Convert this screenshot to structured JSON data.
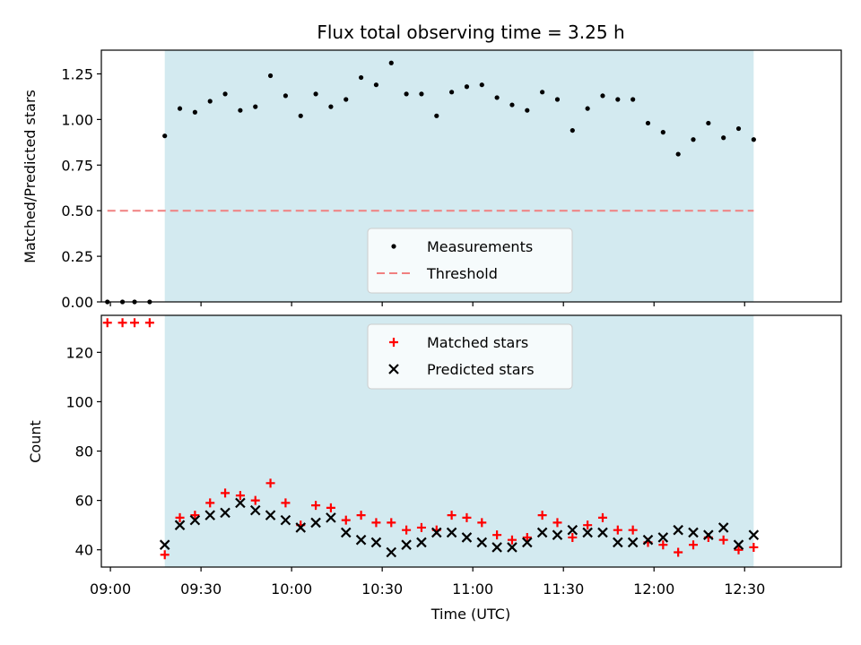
{
  "chart_data": [
    {
      "type": "scatter",
      "title": "Flux total observing time = 3.25 h",
      "xlabel": "",
      "ylabel": "Matched/Predicted stars",
      "xlim": [
        "08:57",
        "13:02"
      ],
      "ylim": [
        0,
        1.38
      ],
      "yticks": [
        "0.00",
        "0.25",
        "0.50",
        "0.75",
        "1.00",
        "1.25"
      ],
      "shaded_region": {
        "from": "09:18",
        "to": "12:33",
        "color": "#d3eaf0"
      },
      "legend_position": "lower-center",
      "series": [
        {
          "name": "Measurements",
          "marker": "dot",
          "color": "#000000",
          "points": [
            [
              "08:59",
              0.0
            ],
            [
              "09:04",
              0.0
            ],
            [
              "09:08",
              0.0
            ],
            [
              "09:13",
              0.0
            ],
            [
              "09:18",
              0.91
            ],
            [
              "09:23",
              1.06
            ],
            [
              "09:28",
              1.04
            ],
            [
              "09:33",
              1.1
            ],
            [
              "09:38",
              1.14
            ],
            [
              "09:43",
              1.05
            ],
            [
              "09:48",
              1.07
            ],
            [
              "09:53",
              1.24
            ],
            [
              "09:58",
              1.13
            ],
            [
              "10:03",
              1.02
            ],
            [
              "10:08",
              1.14
            ],
            [
              "10:13",
              1.07
            ],
            [
              "10:18",
              1.11
            ],
            [
              "10:23",
              1.23
            ],
            [
              "10:28",
              1.19
            ],
            [
              "10:33",
              1.31
            ],
            [
              "10:38",
              1.14
            ],
            [
              "10:43",
              1.14
            ],
            [
              "10:48",
              1.02
            ],
            [
              "10:53",
              1.15
            ],
            [
              "10:58",
              1.18
            ],
            [
              "11:03",
              1.19
            ],
            [
              "11:08",
              1.12
            ],
            [
              "11:13",
              1.08
            ],
            [
              "11:18",
              1.05
            ],
            [
              "11:23",
              1.15
            ],
            [
              "11:28",
              1.11
            ],
            [
              "11:33",
              0.94
            ],
            [
              "11:38",
              1.06
            ],
            [
              "11:43",
              1.13
            ],
            [
              "11:48",
              1.11
            ],
            [
              "11:53",
              1.11
            ],
            [
              "11:58",
              0.98
            ],
            [
              "12:03",
              0.93
            ],
            [
              "12:08",
              0.81
            ],
            [
              "12:13",
              0.89
            ],
            [
              "12:18",
              0.98
            ],
            [
              "12:23",
              0.9
            ],
            [
              "12:28",
              0.95
            ],
            [
              "12:33",
              0.89
            ]
          ]
        },
        {
          "name": "Threshold",
          "marker": "dashed-line",
          "color": "#f08080",
          "points": [
            [
              "08:59",
              0.5
            ],
            [
              "12:33",
              0.5
            ]
          ]
        }
      ]
    },
    {
      "type": "scatter",
      "title": "",
      "xlabel": "Time (UTC)",
      "ylabel": "Count",
      "xlim": [
        "08:57",
        "13:02"
      ],
      "ylim": [
        33,
        135
      ],
      "yticks": [
        "40",
        "60",
        "80",
        "100",
        "120"
      ],
      "xticks": [
        "09:00",
        "09:30",
        "10:00",
        "10:30",
        "11:00",
        "11:30",
        "12:00",
        "12:30"
      ],
      "shaded_region": {
        "from": "09:18",
        "to": "12:33",
        "color": "#d3eaf0"
      },
      "legend_position": "upper-center",
      "series": [
        {
          "name": "Matched stars",
          "marker": "plus",
          "color": "#ff0000",
          "points": [
            [
              "08:59",
              132
            ],
            [
              "09:04",
              132
            ],
            [
              "09:08",
              132
            ],
            [
              "09:13",
              132
            ],
            [
              "09:18",
              38
            ],
            [
              "09:23",
              53
            ],
            [
              "09:28",
              54
            ],
            [
              "09:33",
              59
            ],
            [
              "09:38",
              63
            ],
            [
              "09:43",
              62
            ],
            [
              "09:48",
              60
            ],
            [
              "09:53",
              67
            ],
            [
              "09:58",
              59
            ],
            [
              "10:03",
              50
            ],
            [
              "10:08",
              58
            ],
            [
              "10:13",
              57
            ],
            [
              "10:18",
              52
            ],
            [
              "10:23",
              54
            ],
            [
              "10:28",
              51
            ],
            [
              "10:33",
              51
            ],
            [
              "10:38",
              48
            ],
            [
              "10:43",
              49
            ],
            [
              "10:48",
              48
            ],
            [
              "10:53",
              54
            ],
            [
              "10:58",
              53
            ],
            [
              "11:03",
              51
            ],
            [
              "11:08",
              46
            ],
            [
              "11:13",
              44
            ],
            [
              "11:18",
              45
            ],
            [
              "11:23",
              54
            ],
            [
              "11:28",
              51
            ],
            [
              "11:33",
              45
            ],
            [
              "11:38",
              50
            ],
            [
              "11:43",
              53
            ],
            [
              "11:48",
              48
            ],
            [
              "11:53",
              48
            ],
            [
              "11:58",
              43
            ],
            [
              "12:03",
              42
            ],
            [
              "12:08",
              39
            ],
            [
              "12:13",
              42
            ],
            [
              "12:18",
              45
            ],
            [
              "12:23",
              44
            ],
            [
              "12:28",
              40
            ],
            [
              "12:33",
              41
            ]
          ]
        },
        {
          "name": "Predicted stars",
          "marker": "x",
          "color": "#000000",
          "points": [
            [
              "09:18",
              42
            ],
            [
              "09:23",
              50
            ],
            [
              "09:28",
              52
            ],
            [
              "09:33",
              54
            ],
            [
              "09:38",
              55
            ],
            [
              "09:43",
              59
            ],
            [
              "09:48",
              56
            ],
            [
              "09:53",
              54
            ],
            [
              "09:58",
              52
            ],
            [
              "10:03",
              49
            ],
            [
              "10:08",
              51
            ],
            [
              "10:13",
              53
            ],
            [
              "10:18",
              47
            ],
            [
              "10:23",
              44
            ],
            [
              "10:28",
              43
            ],
            [
              "10:33",
              39
            ],
            [
              "10:38",
              42
            ],
            [
              "10:43",
              43
            ],
            [
              "10:48",
              47
            ],
            [
              "10:53",
              47
            ],
            [
              "10:58",
              45
            ],
            [
              "11:03",
              43
            ],
            [
              "11:08",
              41
            ],
            [
              "11:13",
              41
            ],
            [
              "11:18",
              43
            ],
            [
              "11:23",
              47
            ],
            [
              "11:28",
              46
            ],
            [
              "11:33",
              48
            ],
            [
              "11:38",
              47
            ],
            [
              "11:43",
              47
            ],
            [
              "11:48",
              43
            ],
            [
              "11:53",
              43
            ],
            [
              "11:58",
              44
            ],
            [
              "12:03",
              45
            ],
            [
              "12:08",
              48
            ],
            [
              "12:13",
              47
            ],
            [
              "12:18",
              46
            ],
            [
              "12:23",
              49
            ],
            [
              "12:28",
              42
            ],
            [
              "12:33",
              46
            ]
          ]
        }
      ]
    }
  ]
}
